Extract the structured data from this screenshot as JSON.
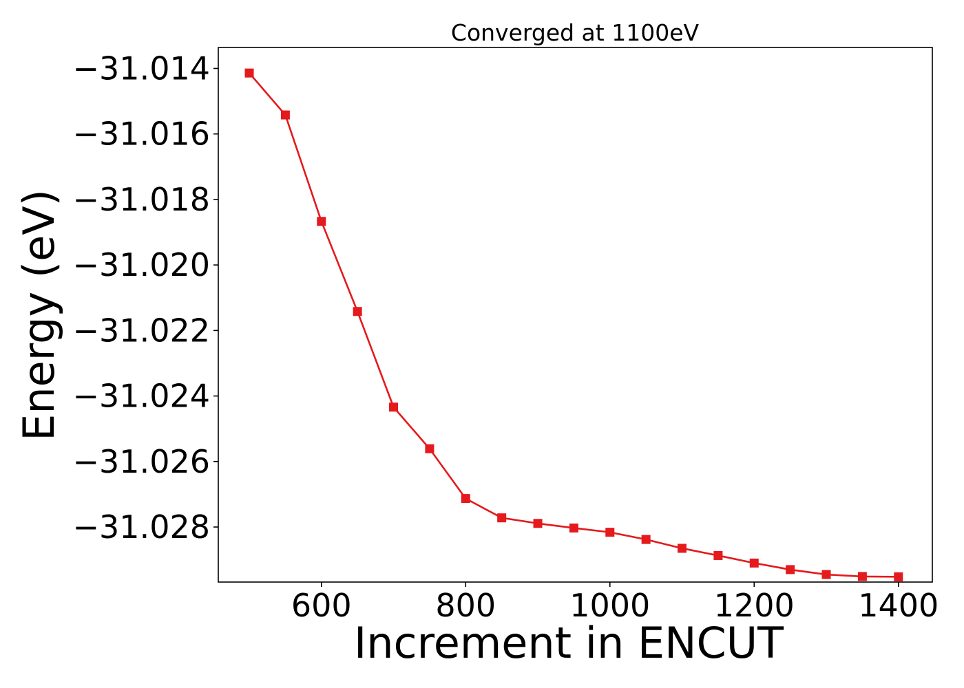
{
  "chart_data": {
    "type": "line",
    "title": "Converged at 1100eV",
    "xlabel": "Increment in ENCUT",
    "ylabel": "Energy (eV)",
    "xlim": [
      457,
      1447
    ],
    "ylim": [
      -31.02968,
      -31.01336
    ],
    "xticks": [
      600,
      800,
      1000,
      1200,
      1400
    ],
    "xtick_labels": [
      "600",
      "800",
      "1000",
      "1200",
      "1400"
    ],
    "yticks": [
      -31.014,
      -31.016,
      -31.018,
      -31.02,
      -31.022,
      -31.024,
      -31.026,
      -31.028
    ],
    "ytick_labels": [
      "−31.014",
      "−31.016",
      "−31.018",
      "−31.020",
      "−31.022",
      "−31.024",
      "−31.026",
      "−31.028"
    ],
    "grid": false,
    "series": [
      {
        "color": "#e41a1c",
        "marker": "square",
        "x": [
          500,
          550,
          600,
          650,
          700,
          750,
          800,
          850,
          900,
          950,
          1000,
          1050,
          1100,
          1150,
          1200,
          1250,
          1300,
          1350,
          1400
        ],
        "y": [
          -31.01414,
          -31.01542,
          -31.01867,
          -31.02142,
          -31.02434,
          -31.02561,
          -31.02713,
          -31.02772,
          -31.02789,
          -31.02803,
          -31.02816,
          -31.02838,
          -31.02865,
          -31.02887,
          -31.0291,
          -31.0293,
          -31.02945,
          -31.02951,
          -31.02952
        ]
      }
    ]
  }
}
